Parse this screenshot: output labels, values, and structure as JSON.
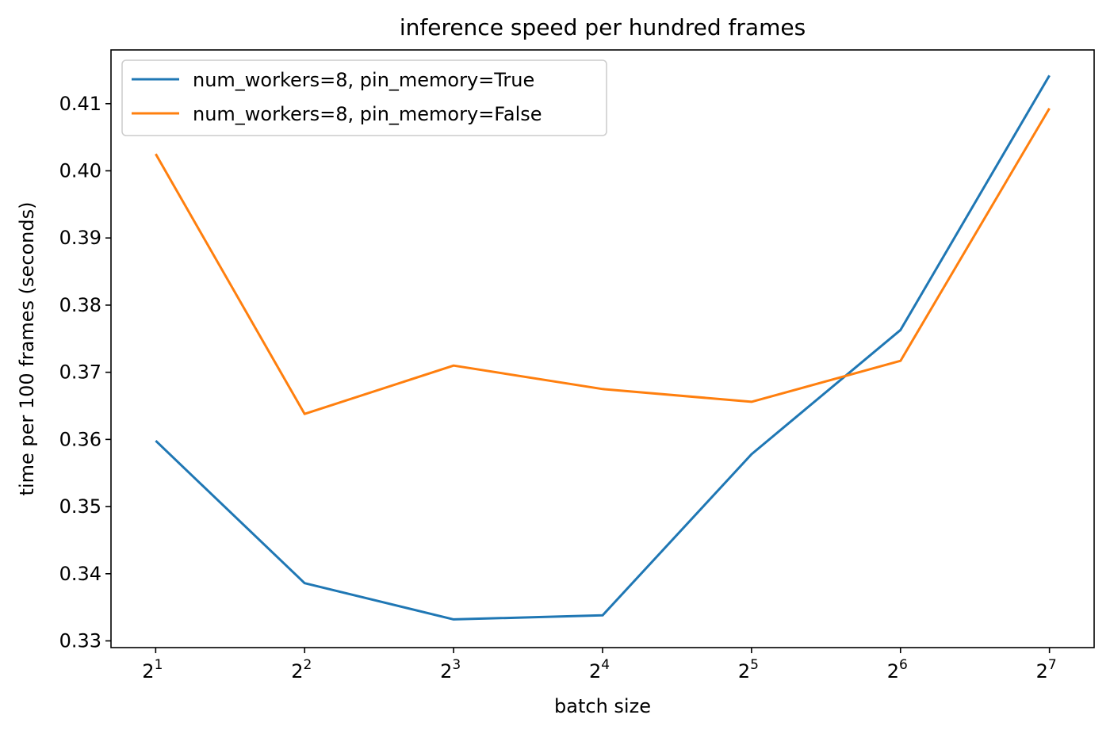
{
  "chart_data": {
    "type": "line",
    "title": "inference speed per hundred frames",
    "xlabel": "batch size",
    "ylabel": "time per 100 frames (seconds)",
    "x_scale": "log2",
    "x": [
      2,
      4,
      8,
      16,
      32,
      64,
      128
    ],
    "x_tick_labels": [
      {
        "base": "2",
        "exp": "1"
      },
      {
        "base": "2",
        "exp": "2"
      },
      {
        "base": "2",
        "exp": "3"
      },
      {
        "base": "2",
        "exp": "4"
      },
      {
        "base": "2",
        "exp": "5"
      },
      {
        "base": "2",
        "exp": "6"
      },
      {
        "base": "2",
        "exp": "7"
      }
    ],
    "y_ticks": [
      "0.33",
      "0.34",
      "0.35",
      "0.36",
      "0.37",
      "0.38",
      "0.39",
      "0.40",
      "0.41"
    ],
    "ylim": [
      0.329,
      0.418
    ],
    "grid": false,
    "legend_position": "top-left",
    "series": [
      {
        "name": "num_workers=8, pin_memory=True",
        "color": "#1f77b4",
        "values": [
          0.3598,
          0.3386,
          0.3332,
          0.3338,
          0.3578,
          0.3763,
          0.4142
        ]
      },
      {
        "name": "num_workers=8, pin_memory=False",
        "color": "#ff7f0e",
        "values": [
          0.4025,
          0.3638,
          0.371,
          0.3675,
          0.3656,
          0.3717,
          0.4093
        ]
      }
    ]
  }
}
